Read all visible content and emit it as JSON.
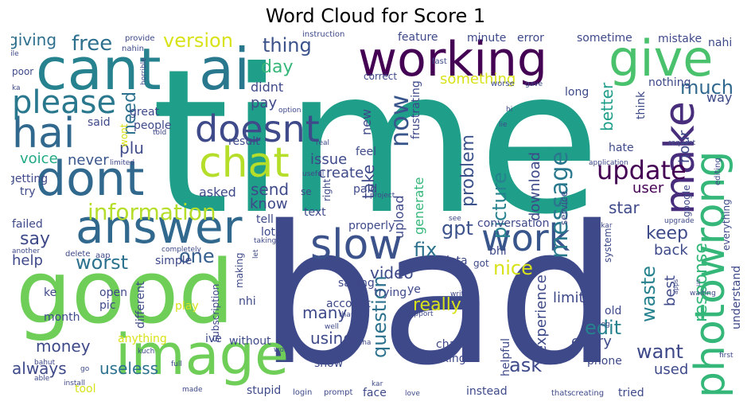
{
  "chart_data": {
    "type": "wordcloud",
    "title": "Word Cloud for Score 1",
    "words": [
      {
        "text": "time",
        "color": "#1f9e89"
      },
      {
        "text": "bad",
        "color": "#3e4989"
      },
      {
        "text": "good",
        "color": "#6ece58"
      },
      {
        "text": "image",
        "color": "#6ece58"
      },
      {
        "text": "cant",
        "color": "#26828e"
      },
      {
        "text": "ai",
        "color": "#2a788e"
      },
      {
        "text": "working",
        "color": "#440154"
      },
      {
        "text": "give",
        "color": "#4ac16d"
      },
      {
        "text": "answer",
        "color": "#31688e"
      },
      {
        "text": "dont",
        "color": "#31688e"
      },
      {
        "text": "chat",
        "color": "#b5de2b"
      },
      {
        "text": "hai",
        "color": "#31688e"
      },
      {
        "text": "slow",
        "color": "#3b528b"
      },
      {
        "text": "work",
        "color": "#39568c"
      },
      {
        "text": "photowrong",
        "color": "#35b779"
      },
      {
        "text": "make",
        "color": "#472d7b"
      },
      {
        "text": "doesnt",
        "color": "#3e4a89"
      },
      {
        "text": "please",
        "color": "#2a788e"
      },
      {
        "text": "update",
        "color": "#440154"
      },
      {
        "text": "now",
        "color": "#39568c"
      },
      {
        "text": "information",
        "color": "#b5de2b"
      },
      {
        "text": "version",
        "color": "#d8e219"
      },
      {
        "text": "free",
        "color": "#2d708e"
      },
      {
        "text": "giving",
        "color": "#2d708e"
      },
      {
        "text": "thing",
        "color": "#3b528b"
      },
      {
        "text": "day",
        "color": "#35b779"
      },
      {
        "text": "much",
        "color": "#31688e"
      },
      {
        "text": "need",
        "color": "#2c728e"
      },
      {
        "text": "plu",
        "color": "#3e4989"
      },
      {
        "text": "voice",
        "color": "#22a884"
      },
      {
        "text": "never",
        "color": "#39568c"
      },
      {
        "text": "say",
        "color": "#3e4989"
      },
      {
        "text": "worst",
        "color": "#2c728e"
      },
      {
        "text": "one",
        "color": "#355f8d"
      },
      {
        "text": "help",
        "color": "#3e4989"
      },
      {
        "text": "money",
        "color": "#3e4989"
      },
      {
        "text": "always",
        "color": "#3e4989"
      },
      {
        "text": "useless",
        "color": "#2c728e"
      },
      {
        "text": "message",
        "color": "#2a788e"
      },
      {
        "text": "picture",
        "color": "#26828e"
      },
      {
        "text": "problem",
        "color": "#3b528b"
      },
      {
        "text": "gpt",
        "color": "#3b528b"
      },
      {
        "text": "fix",
        "color": "#2c728e"
      },
      {
        "text": "video",
        "color": "#3e4989"
      },
      {
        "text": "nice",
        "color": "#d8e219"
      },
      {
        "text": "really",
        "color": "#d8e219"
      },
      {
        "text": "many",
        "color": "#3e4989"
      },
      {
        "text": "using",
        "color": "#3e4989"
      },
      {
        "text": "question",
        "color": "#2c728e"
      },
      {
        "text": "ask",
        "color": "#3e4989"
      },
      {
        "text": "edit",
        "color": "#26828e"
      },
      {
        "text": "want",
        "color": "#3e4989"
      },
      {
        "text": "keep",
        "color": "#3e4989"
      },
      {
        "text": "star",
        "color": "#3e4989"
      },
      {
        "text": "user",
        "color": "#440154"
      },
      {
        "text": "waste",
        "color": "#26828e"
      },
      {
        "text": "response",
        "color": "#35b779"
      },
      {
        "text": "send",
        "color": "#3e4989"
      },
      {
        "text": "take",
        "color": "#3e4989"
      },
      {
        "text": "something",
        "color": "#d8e219"
      },
      {
        "text": "create",
        "color": "#3e4989"
      },
      {
        "text": "issue",
        "color": "#3e4989"
      },
      {
        "text": "better",
        "color": "#1f9e89"
      },
      {
        "text": "hour",
        "color": "#3e4989"
      },
      {
        "text": "limit",
        "color": "#3e4989"
      },
      {
        "text": "back",
        "color": "#3e4989"
      },
      {
        "text": "best",
        "color": "#3e4989"
      },
      {
        "text": "experience",
        "color": "#3e4989"
      },
      {
        "text": "every",
        "color": "#3e4989"
      },
      {
        "text": "used",
        "color": "#3e4989"
      },
      {
        "text": "download",
        "color": "#3e4989"
      },
      {
        "text": "upload",
        "color": "#3e4989"
      },
      {
        "text": "generate",
        "color": "#35b779"
      },
      {
        "text": "know",
        "color": "#3e4989"
      },
      {
        "text": "asked",
        "color": "#3e4989"
      },
      {
        "text": "pay",
        "color": "#3e4989"
      },
      {
        "text": "didnt",
        "color": "#3e4989"
      },
      {
        "text": "new",
        "color": "#3e4989"
      },
      {
        "text": "feel",
        "color": "#3e4989"
      },
      {
        "text": "hate",
        "color": "#3e4989"
      },
      {
        "text": "way",
        "color": "#3e4989"
      },
      {
        "text": "long",
        "color": "#3e4989"
      },
      {
        "text": "error",
        "color": "#3e4989"
      },
      {
        "text": "sometime",
        "color": "#3e4989"
      },
      {
        "text": "mistake",
        "color": "#3e4989"
      },
      {
        "text": "nahi",
        "color": "#3e4989"
      },
      {
        "text": "minute",
        "color": "#3e4989"
      },
      {
        "text": "feature",
        "color": "#3e4989"
      },
      {
        "text": "think",
        "color": "#3e4989"
      },
      {
        "text": "nothing",
        "color": "#3e4989"
      },
      {
        "text": "great",
        "color": "#3e4989"
      },
      {
        "text": "people",
        "color": "#3e4989"
      },
      {
        "text": "said",
        "color": "#3e4989"
      },
      {
        "text": "wont",
        "color": "#d8e219"
      },
      {
        "text": "result",
        "color": "#3e4989"
      },
      {
        "text": "getting",
        "color": "#3e4989"
      },
      {
        "text": "try",
        "color": "#3e4989"
      },
      {
        "text": "failed",
        "color": "#3e4989"
      },
      {
        "text": "simple",
        "color": "#3e4989"
      },
      {
        "text": "open",
        "color": "#3e4989"
      },
      {
        "text": "pic",
        "color": "#3e4989"
      },
      {
        "text": "different",
        "color": "#3e4989"
      },
      {
        "text": "month",
        "color": "#3e4989"
      },
      {
        "text": "anything",
        "color": "#d8e219"
      },
      {
        "text": "ke",
        "color": "#3e4989"
      },
      {
        "text": "play",
        "color": "#d8e219"
      },
      {
        "text": "nhi",
        "color": "#3e4989"
      },
      {
        "text": "ive",
        "color": "#3e4989"
      },
      {
        "text": "without",
        "color": "#3e4989"
      },
      {
        "text": "stupid",
        "color": "#3e4989"
      },
      {
        "text": "subscription",
        "color": "#3e4989"
      },
      {
        "text": "making",
        "color": "#3e4989"
      },
      {
        "text": "account",
        "color": "#3e4989"
      },
      {
        "text": "trying",
        "color": "#3e4989"
      },
      {
        "text": "saying",
        "color": "#3e4989"
      },
      {
        "text": "properly",
        "color": "#3e4989"
      },
      {
        "text": "text",
        "color": "#3e4989"
      },
      {
        "text": "lot",
        "color": "#3e4989"
      },
      {
        "text": "tell",
        "color": "#3e4989"
      },
      {
        "text": "paid",
        "color": "#3e4989"
      },
      {
        "text": "right",
        "color": "#3e4989"
      },
      {
        "text": "se",
        "color": "#3e4989"
      },
      {
        "text": "conversation",
        "color": "#3e4989"
      },
      {
        "text": "bhi",
        "color": "#3e4989"
      },
      {
        "text": "data",
        "color": "#3e4989"
      },
      {
        "text": "got",
        "color": "#3e4989"
      },
      {
        "text": "ye",
        "color": "#3e4989"
      },
      {
        "text": "change",
        "color": "#3e4989"
      },
      {
        "text": "asking",
        "color": "#3e4989"
      },
      {
        "text": "show",
        "color": "#3e4989"
      },
      {
        "text": "face",
        "color": "#3e4989"
      },
      {
        "text": "instead",
        "color": "#3e4989"
      },
      {
        "text": "tried",
        "color": "#3e4989"
      },
      {
        "text": "phone",
        "color": "#3e4989"
      },
      {
        "text": "helpful",
        "color": "#3e4989"
      },
      {
        "text": "old",
        "color": "#3e4989"
      },
      {
        "text": "h",
        "color": "#3e4989"
      },
      {
        "text": "tool",
        "color": "#d8e219"
      },
      {
        "text": "understand",
        "color": "#3e4989"
      },
      {
        "text": "everything",
        "color": "#3e4989"
      },
      {
        "text": "system",
        "color": "#3e4989"
      },
      {
        "text": "google",
        "color": "#3e4989"
      },
      {
        "text": "service",
        "color": "#3e4989"
      },
      {
        "text": "frustrating",
        "color": "#3e4989"
      },
      {
        "text": "correct",
        "color": "#3e4989"
      },
      {
        "text": "poor",
        "color": "#3e4989"
      },
      {
        "text": "provide",
        "color": "#3e4989"
      },
      {
        "text": "nahin",
        "color": "#3e4989"
      },
      {
        "text": "instruction",
        "color": "#3e4989"
      },
      {
        "text": "file",
        "color": "#3e4989"
      },
      {
        "text": "fast",
        "color": "#3e4989"
      },
      {
        "text": "horrible",
        "color": "#3e4989"
      },
      {
        "text": "ka",
        "color": "#3e4989"
      },
      {
        "text": "worse",
        "color": "#3e4989"
      },
      {
        "text": "gave",
        "color": "#3e4989"
      },
      {
        "text": "option",
        "color": "#3e4989"
      },
      {
        "text": "hi",
        "color": "#3e4989"
      },
      {
        "text": "request",
        "color": "#3e4989"
      },
      {
        "text": "lie",
        "color": "#3e4989"
      },
      {
        "text": "told",
        "color": "#3e4989"
      },
      {
        "text": "real",
        "color": "#3e4989"
      },
      {
        "text": "limited",
        "color": "#3e4989"
      },
      {
        "text": "useful",
        "color": "#3e4989"
      },
      {
        "text": "project",
        "color": "#3e4989"
      },
      {
        "text": "application",
        "color": "#3e4989"
      },
      {
        "text": "editing",
        "color": "#3e4989"
      },
      {
        "text": "see",
        "color": "#3e4989"
      },
      {
        "text": "bekar",
        "color": "#3e4989"
      },
      {
        "text": "upgrade",
        "color": "#3e4989"
      },
      {
        "text": "aap",
        "color": "#3e4989"
      },
      {
        "text": "let",
        "color": "#3e4989"
      },
      {
        "text": "taking",
        "color": "#3e4989"
      },
      {
        "text": "delete",
        "color": "#3e4989"
      },
      {
        "text": "completely",
        "color": "#3e4989"
      },
      {
        "text": "another",
        "color": "#3e4989"
      },
      {
        "text": "kuch",
        "color": "#3e4989"
      },
      {
        "text": "bahut",
        "color": "#3e4989"
      },
      {
        "text": "able",
        "color": "#3e4989"
      },
      {
        "text": "go",
        "color": "#3e4989"
      },
      {
        "text": "install",
        "color": "#3e4989"
      },
      {
        "text": "full",
        "color": "#3e4989"
      },
      {
        "text": "made",
        "color": "#3e4989"
      },
      {
        "text": "word",
        "color": "#3e4989"
      },
      {
        "text": "thank",
        "color": "#3e4989"
      },
      {
        "text": "write",
        "color": "#3e4989"
      },
      {
        "text": "support",
        "color": "#3e4989"
      },
      {
        "text": "well",
        "color": "#3e4989"
      },
      {
        "text": "raha",
        "color": "#3e4989"
      },
      {
        "text": "login",
        "color": "#3e4989"
      },
      {
        "text": "prompt",
        "color": "#3e4989"
      },
      {
        "text": "kar",
        "color": "#3e4989"
      },
      {
        "text": "love",
        "color": "#3e4989"
      },
      {
        "text": "thats",
        "color": "#3e4989"
      },
      {
        "text": "creating",
        "color": "#3e4989"
      },
      {
        "text": "waiting",
        "color": "#3e4989"
      },
      {
        "text": "apps",
        "color": "#3e4989"
      },
      {
        "text": "us",
        "color": "#3e4989"
      },
      {
        "text": "log",
        "color": "#3e4989"
      },
      {
        "text": "first",
        "color": "#3e4989"
      }
    ]
  }
}
